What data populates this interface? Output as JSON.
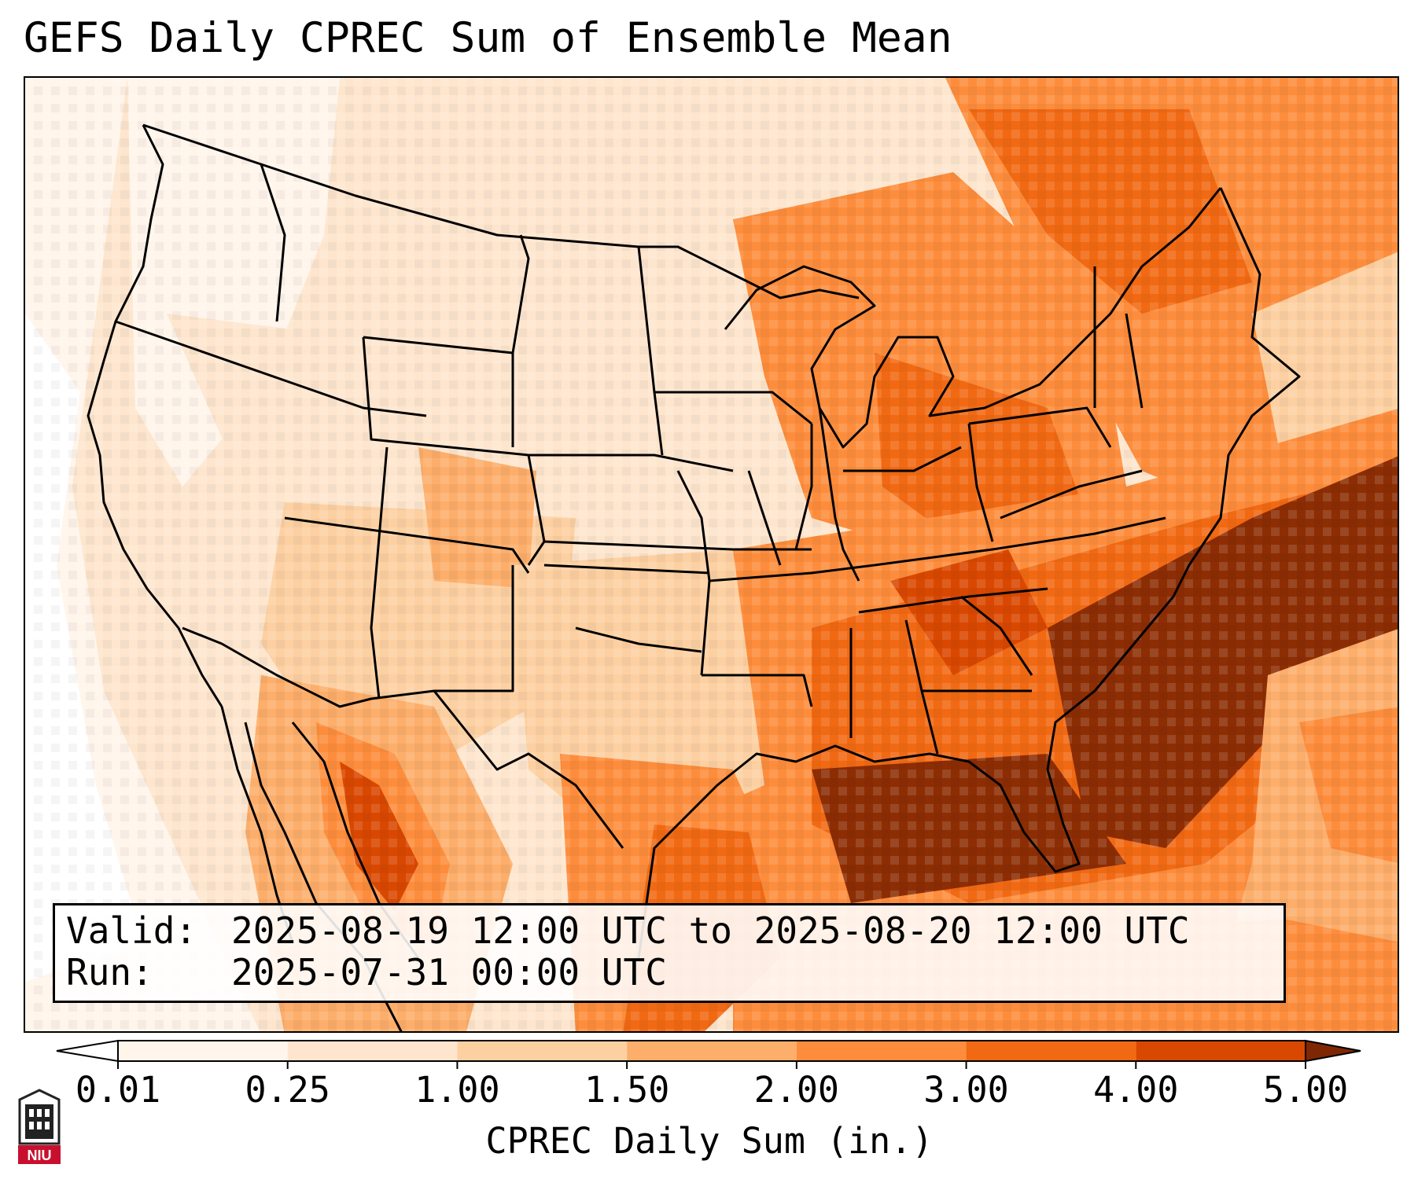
{
  "title": "GEFS Daily CPREC Sum of Ensemble Mean",
  "info": {
    "valid_key": "Valid:",
    "valid_value": "2025-08-19 12:00 UTC to 2025-08-20 12:00 UTC",
    "run_key": "Run:",
    "run_value": "2025-07-31 00:00 UTC"
  },
  "colorbar": {
    "label": "CPREC Daily Sum (in.)",
    "ticks": [
      "0.01",
      "0.25",
      "1.00",
      "1.50",
      "2.00",
      "3.00",
      "4.00",
      "5.00"
    ],
    "colors": [
      "#fff5eb",
      "#fee6ce",
      "#fdd0a2",
      "#fdae6b",
      "#fd8d3c",
      "#f16913",
      "#d94801",
      "#8c2d04"
    ],
    "under_color": "#ffffff",
    "over_color": "#7f2704"
  },
  "logo": {
    "text": "NIU",
    "color": "#c8102e"
  },
  "map_colors": {
    "very_light": "#fff5eb",
    "light": "#fee6ce",
    "light_medium": "#fdd0a2",
    "medium": "#fdae6b",
    "medium_dark": "#fd8d3c",
    "dark": "#f16913",
    "darker": "#d94801",
    "darkest": "#8c2d04"
  }
}
